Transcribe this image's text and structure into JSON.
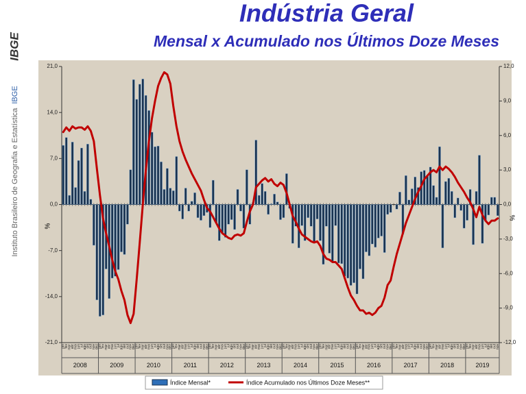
{
  "logo": "IBGE",
  "sidebar": {
    "institute": "Instituto Brasileiro de Geografia e Estatística",
    "acronym": "IBGE"
  },
  "chart_data": {
    "type": "bar",
    "title": "Indústria Geral",
    "subtitle": "Mensal x Acumulado nos Últimos Doze Meses",
    "y_label": "%",
    "y2_label": "%",
    "categories": [
      "jan",
      "fev",
      "mar",
      "abr",
      "mai",
      "jun",
      "jul",
      "ago",
      "set",
      "out",
      "nov",
      "dez",
      "jan",
      "fev",
      "mar",
      "abr",
      "mai",
      "jun",
      "jul",
      "ago",
      "set",
      "out",
      "nov",
      "dez",
      "jan",
      "fev",
      "mar",
      "abr",
      "mai",
      "jun",
      "jul",
      "ago",
      "set",
      "out",
      "nov",
      "dez",
      "jan",
      "fev",
      "mar",
      "abr",
      "mai",
      "jun",
      "jul",
      "ago",
      "set",
      "out",
      "nov",
      "dez",
      "jan",
      "fev",
      "mar",
      "abr",
      "mai",
      "jun",
      "jul",
      "ago",
      "set",
      "out",
      "nov",
      "dez",
      "jan",
      "fev",
      "mar",
      "abr",
      "mai",
      "jun",
      "jul",
      "ago",
      "set",
      "out",
      "nov",
      "dez",
      "jan",
      "fev",
      "mar",
      "abr",
      "mai",
      "jun",
      "jul",
      "ago",
      "set",
      "out",
      "nov",
      "dez",
      "jan",
      "fev",
      "mar",
      "abr",
      "mai",
      "jun",
      "jul",
      "ago",
      "set",
      "out",
      "nov",
      "dez",
      "jan",
      "fev",
      "mar",
      "abr",
      "mai",
      "jun",
      "jul",
      "ago",
      "set",
      "out",
      "nov",
      "dez",
      "jan",
      "fev",
      "mar",
      "abr",
      "mai",
      "jun",
      "jul",
      "ago",
      "set",
      "out",
      "nov",
      "dez",
      "jan",
      "fev",
      "mar",
      "abr",
      "mai",
      "jun",
      "jul",
      "ago",
      "set",
      "out",
      "nov",
      "dez",
      "jan",
      "fev",
      "mar",
      "abr",
      "mai",
      "jun",
      "jul",
      "ago",
      "set",
      "out",
      "nov"
    ],
    "years": [
      "2008",
      "2009",
      "2010",
      "2011",
      "2012",
      "2013",
      "2014",
      "2015",
      "2016",
      "2017",
      "2018",
      "2019"
    ],
    "ylim": [
      -21,
      21
    ],
    "yticks": [
      {
        "value": -21,
        "label": "-21,0"
      },
      {
        "value": -14,
        "label": "-14,0"
      },
      {
        "value": -7,
        "label": "-7,0"
      },
      {
        "value": 0,
        "label": "0,0"
      },
      {
        "value": 7,
        "label": "7,0"
      },
      {
        "value": 14,
        "label": "14,0"
      },
      {
        "value": 21,
        "label": "21,0"
      }
    ],
    "y2lim": [
      -12,
      12
    ],
    "y2ticks": [
      {
        "value": -12,
        "label": "-12,0"
      },
      {
        "value": -9,
        "label": "-9,0"
      },
      {
        "value": -6,
        "label": "-6,0"
      },
      {
        "value": -3,
        "label": "-3,0"
      },
      {
        "value": 0,
        "label": "0,0"
      },
      {
        "value": 3,
        "label": "3,0"
      },
      {
        "value": 6,
        "label": "6,0"
      },
      {
        "value": 9,
        "label": "9,0"
      },
      {
        "value": 12,
        "label": "12,0"
      }
    ],
    "series": [
      {
        "name": "Índice Mensal*",
        "type": "bar",
        "color": "#1a3350",
        "values": [
          9.0,
          10.2,
          1.4,
          9.5,
          2.6,
          6.7,
          8.6,
          2.0,
          9.2,
          0.8,
          -6.2,
          -14.5,
          -17.0,
          -16.8,
          -9.8,
          -14.3,
          -11.2,
          -10.9,
          -9.9,
          -7.2,
          -7.6,
          -3.0,
          5.3,
          19.0,
          16.0,
          18.3,
          19.1,
          16.6,
          14.3,
          11.0,
          8.8,
          8.9,
          6.5,
          2.3,
          5.5,
          2.5,
          2.1,
          7.3,
          -1.0,
          -2.2,
          2.5,
          -1.0,
          0.5,
          1.8,
          -2.0,
          -2.4,
          -1.7,
          -1.2,
          -3.5,
          3.7,
          -2.8,
          -5.5,
          -4.4,
          -5.0,
          -3.0,
          -2.3,
          -3.8,
          2.3,
          -1.0,
          -3.6,
          5.3,
          -3.0,
          0.3,
          9.8,
          1.4,
          3.2,
          2.0,
          -1.5,
          0.1,
          1.6,
          0.4,
          -2.3,
          -2.0,
          4.7,
          -0.6,
          -5.9,
          -3.3,
          -6.6,
          -3.2,
          -5.5,
          -2.0,
          -3.3,
          -5.6,
          -2.2,
          -5.5,
          -9.1,
          -3.3,
          -7.4,
          -8.8,
          -3.2,
          -8.9,
          -9.0,
          -10.9,
          -11.2,
          -12.3,
          -11.9,
          -13.6,
          -9.8,
          -11.3,
          -7.2,
          -7.8,
          -6.0,
          -6.5,
          -5.1,
          -4.8,
          -7.3,
          -1.5,
          -1.2,
          0.0,
          -0.7,
          1.9,
          -4.5,
          4.4,
          0.7,
          2.4,
          4.2,
          2.6,
          5.0,
          5.2,
          4.3,
          5.7,
          2.9,
          1.1,
          8.8,
          -6.6,
          3.5,
          4.0,
          2.0,
          -2.0,
          1.0,
          -0.9,
          -3.6,
          -2.4,
          2.3,
          -6.1,
          2.0,
          7.5,
          -5.9,
          -2.5,
          -1.6,
          1.1,
          1.1,
          -1.7
        ]
      },
      {
        "name": "Índice Acumulado nos Últimos Doze Meses**",
        "type": "line",
        "axis": "y2",
        "color": "#c00000",
        "values": [
          6.3,
          6.7,
          6.4,
          6.8,
          6.6,
          6.7,
          6.7,
          6.5,
          6.8,
          6.4,
          5.5,
          3.1,
          0.8,
          -1.2,
          -2.5,
          -3.6,
          -4.8,
          -5.8,
          -6.5,
          -7.5,
          -8.3,
          -9.6,
          -10.3,
          -9.5,
          -6.5,
          -3.3,
          0.0,
          3.0,
          5.5,
          7.5,
          9.0,
          10.3,
          11.0,
          11.5,
          11.3,
          10.5,
          8.5,
          6.8,
          5.5,
          4.6,
          3.9,
          3.3,
          2.7,
          2.2,
          1.7,
          1.2,
          0.4,
          -0.3,
          -0.6,
          -1.1,
          -1.6,
          -2.1,
          -2.5,
          -2.7,
          -2.9,
          -3.0,
          -2.7,
          -2.6,
          -2.7,
          -2.5,
          -1.5,
          -0.6,
          0.0,
          1.5,
          1.8,
          2.1,
          2.3,
          2.0,
          2.2,
          1.8,
          1.6,
          1.9,
          1.7,
          1.0,
          0.0,
          -1.0,
          -1.5,
          -2.1,
          -2.6,
          -2.8,
          -3.0,
          -3.2,
          -3.3,
          -3.2,
          -3.6,
          -4.3,
          -4.7,
          -4.8,
          -5.0,
          -5.0,
          -5.3,
          -5.6,
          -6.4,
          -7.2,
          -7.9,
          -8.3,
          -8.8,
          -9.2,
          -9.2,
          -9.5,
          -9.4,
          -9.6,
          -9.4,
          -9.0,
          -8.8,
          -8.1,
          -7.0,
          -6.6,
          -5.4,
          -4.3,
          -3.4,
          -2.5,
          -1.6,
          -0.9,
          -0.2,
          0.5,
          1.1,
          1.6,
          2.2,
          2.5,
          2.8,
          3.0,
          2.8,
          3.3,
          3.0,
          3.3,
          3.1,
          2.8,
          2.4,
          1.9,
          1.5,
          1.1,
          0.6,
          0.2,
          -0.4,
          -1.1,
          -0.2,
          -0.9,
          -1.4,
          -1.7,
          -1.4,
          -1.4,
          -1.2
        ]
      }
    ]
  }
}
